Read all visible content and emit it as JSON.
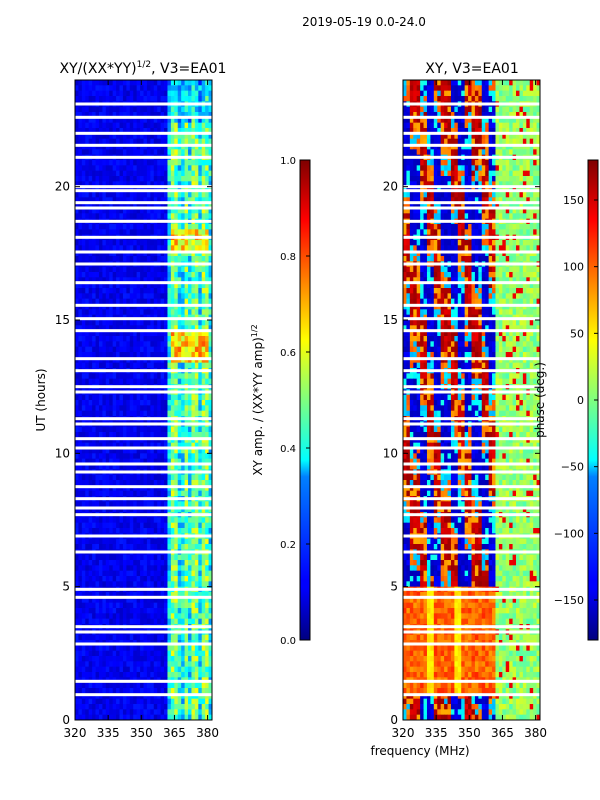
{
  "figure": {
    "suptitle": "2019-05-19 0.0-24.0",
    "shared_xlabel": "frequency (MHz)"
  },
  "chart_data": [
    {
      "type": "heatmap",
      "title_main": "XY/(XX*YY)",
      "title_power": "1/2",
      "title_suffix": ", V3=EA01",
      "xlabel": "",
      "ylabel": "UT (hours)",
      "xlim": [
        320,
        382
      ],
      "ylim": [
        0,
        24
      ],
      "xticks": [
        320,
        335,
        350,
        365,
        380
      ],
      "yticks": [
        0,
        5,
        10,
        15,
        20
      ],
      "colorbar": {
        "label_main": "XY amp. / (XX*YY amp)",
        "label_power": "1/2",
        "range": [
          0.0,
          1.0
        ],
        "ticks": [
          "0.0",
          "0.2",
          "0.4",
          "0.6",
          "0.8",
          "1.0"
        ],
        "colormap": "jet"
      },
      "summary": "Low amplitude (~0.05-0.15) below 362 MHz; bright band 362-380 MHz, peaks ~0.6-0.8 near 13-14 UT and 17-18 UT"
    },
    {
      "type": "heatmap",
      "title_main": "XY, V3=EA01",
      "xlabel": "",
      "ylabel": "",
      "xlim": [
        320,
        382
      ],
      "ylim": [
        0,
        24
      ],
      "xticks": [
        320,
        335,
        350,
        365,
        380
      ],
      "yticks": [
        0,
        5,
        10,
        15,
        20
      ],
      "colorbar": {
        "label_main": "phase (deg.)",
        "range": [
          -180,
          180
        ],
        "ticks": [
          "-150",
          "-100",
          "-50",
          "0",
          "50",
          "100",
          "150"
        ],
        "colormap": "jet"
      },
      "summary": "Phase ~+100 deg (orange/yellow) below 360 MHz for 1-5 UT; mixed +/-180 deg stripes 5-24 UT; cyan/green above 362 MHz"
    }
  ],
  "flagged_time_rows_ut": [
    0.95,
    1.45,
    2.85,
    3.3,
    3.5,
    4.6,
    4.9,
    6.3,
    6.9,
    7.7,
    7.95,
    8.3,
    8.75,
    9.3,
    9.6,
    10.2,
    10.55,
    11.1,
    11.3,
    12.3,
    12.5,
    13.1,
    13.55,
    14.6,
    15.05,
    15.55,
    16.4,
    17.1,
    17.55,
    18.1,
    18.7,
    19.2,
    19.4,
    19.85,
    20.0,
    21.1,
    21.55,
    22.0,
    22.6,
    23.1
  ]
}
